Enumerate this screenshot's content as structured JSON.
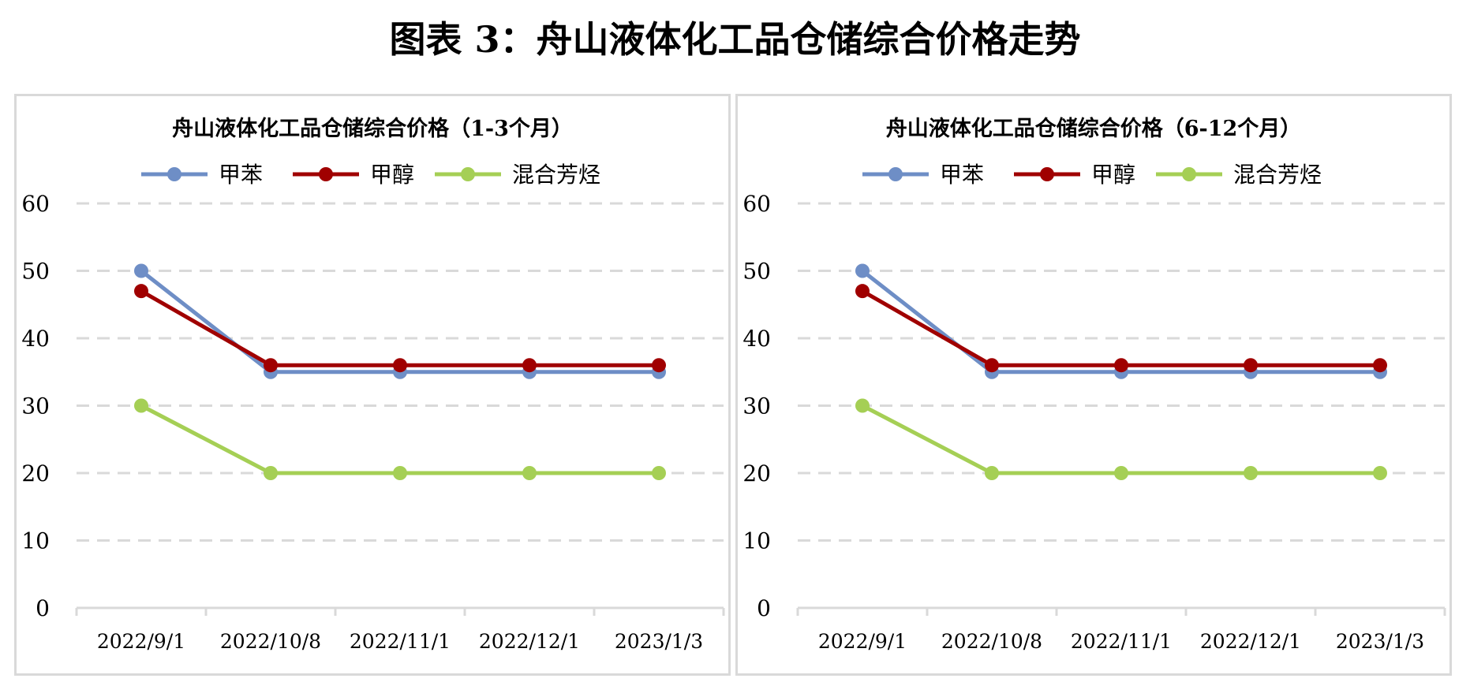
{
  "title": "图表 3：舟山液体化工品仓储综合价格走势",
  "colors": {
    "甲苯": "#6e8ec6",
    "甲醇": "#a00000",
    "混合芳烃": "#a5cf55",
    "grid": "#d9d9d9"
  },
  "chart_data": [
    {
      "type": "line",
      "title": "舟山液体化工品仓储综合价格（1-3个月）",
      "categories": [
        "2022/9/1",
        "2022/10/8",
        "2022/11/1",
        "2022/12/1",
        "2023/1/3"
      ],
      "ylim": [
        0,
        60
      ],
      "yticks": [
        "0",
        "10",
        "20",
        "30",
        "40",
        "50",
        "60"
      ],
      "grid": true,
      "legend": "top",
      "series": [
        {
          "name": "甲苯",
          "values": [
            50,
            35,
            35,
            35,
            35
          ]
        },
        {
          "name": "甲醇",
          "values": [
            47,
            36,
            36,
            36,
            36
          ]
        },
        {
          "name": "混合芳烃",
          "values": [
            30,
            20,
            20,
            20,
            20
          ]
        }
      ]
    },
    {
      "type": "line",
      "title": "舟山液体化工品仓储综合价格（6-12个月）",
      "categories": [
        "2022/9/1",
        "2022/10/8",
        "2022/11/1",
        "2022/12/1",
        "2023/1/3"
      ],
      "ylim": [
        0,
        60
      ],
      "yticks": [
        "0",
        "10",
        "20",
        "30",
        "40",
        "50",
        "60"
      ],
      "grid": true,
      "legend": "top",
      "series": [
        {
          "name": "甲苯",
          "values": [
            50,
            35,
            35,
            35,
            35
          ]
        },
        {
          "name": "甲醇",
          "values": [
            47,
            36,
            36,
            36,
            36
          ]
        },
        {
          "name": "混合芳烃",
          "values": [
            30,
            20,
            20,
            20,
            20
          ]
        }
      ]
    }
  ]
}
